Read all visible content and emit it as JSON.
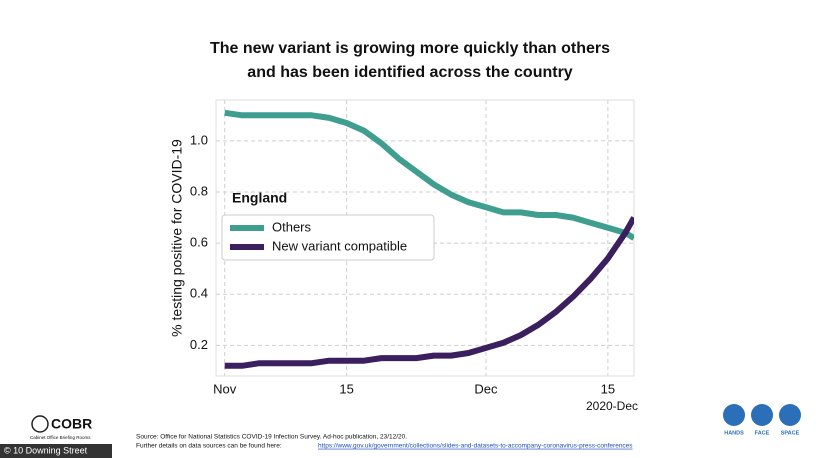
{
  "chart_data": {
    "type": "line",
    "title": [
      "The new variant is growing more quickly than others",
      "and has been identified across the country"
    ],
    "ylabel": "% testing positive for COVID-19",
    "legend_title": "England",
    "legend_position": "center left",
    "grid": true,
    "x": [
      "2020-11-01",
      "2020-11-03",
      "2020-11-05",
      "2020-11-07",
      "2020-11-09",
      "2020-11-11",
      "2020-11-13",
      "2020-11-15",
      "2020-11-17",
      "2020-11-19",
      "2020-11-21",
      "2020-11-23",
      "2020-11-25",
      "2020-11-27",
      "2020-11-29",
      "2020-12-01",
      "2020-12-03",
      "2020-12-05",
      "2020-12-07",
      "2020-12-09",
      "2020-12-11",
      "2020-12-13",
      "2020-12-15",
      "2020-12-17",
      "2020-12-18"
    ],
    "series": [
      {
        "name": "Others",
        "color": "#3f9e8f",
        "values": [
          1.11,
          1.1,
          1.1,
          1.1,
          1.1,
          1.1,
          1.09,
          1.07,
          1.04,
          0.99,
          0.93,
          0.88,
          0.83,
          0.79,
          0.76,
          0.74,
          0.72,
          0.72,
          0.71,
          0.71,
          0.7,
          0.68,
          0.66,
          0.64,
          0.62
        ]
      },
      {
        "name": "New variant compatible",
        "color": "#3b1f5e",
        "values": [
          0.12,
          0.12,
          0.13,
          0.13,
          0.13,
          0.13,
          0.14,
          0.14,
          0.14,
          0.15,
          0.15,
          0.15,
          0.16,
          0.16,
          0.17,
          0.19,
          0.21,
          0.24,
          0.28,
          0.33,
          0.39,
          0.46,
          0.54,
          0.64,
          0.7
        ]
      }
    ],
    "xlim": [
      "2020-10-31",
      "2020-12-18"
    ],
    "xticks": [
      {
        "value": "2020-11-01",
        "label": "Nov"
      },
      {
        "value": "2020-11-15",
        "label": "15"
      },
      {
        "value": "2020-12-01",
        "label": "Dec"
      },
      {
        "value": "2020-12-15",
        "label": "15"
      }
    ],
    "x_axis_note": "2020-Dec",
    "ylim": [
      0.08,
      1.16
    ],
    "yticks": [
      0.2,
      0.4,
      0.6,
      0.8,
      {
        "value": 1,
        "label": "1.0"
      }
    ]
  },
  "footer": {
    "logo": "COBR",
    "logo_sub": "Cabinet Office Briefing Rooms",
    "copyright": "© 10 Downing Street",
    "source": "Source: Office for National Statistics COVID-19 Infection Survey. Ad-hoc publication, 23/12/20.",
    "details": "Further details on data sources can be found here:",
    "url": "https://www.gov.uk/government/collections/slides-and-datasets-to-accompany-coronavirus-press-conferences",
    "icons": [
      "HANDS",
      "FACE",
      "SPACE"
    ]
  }
}
